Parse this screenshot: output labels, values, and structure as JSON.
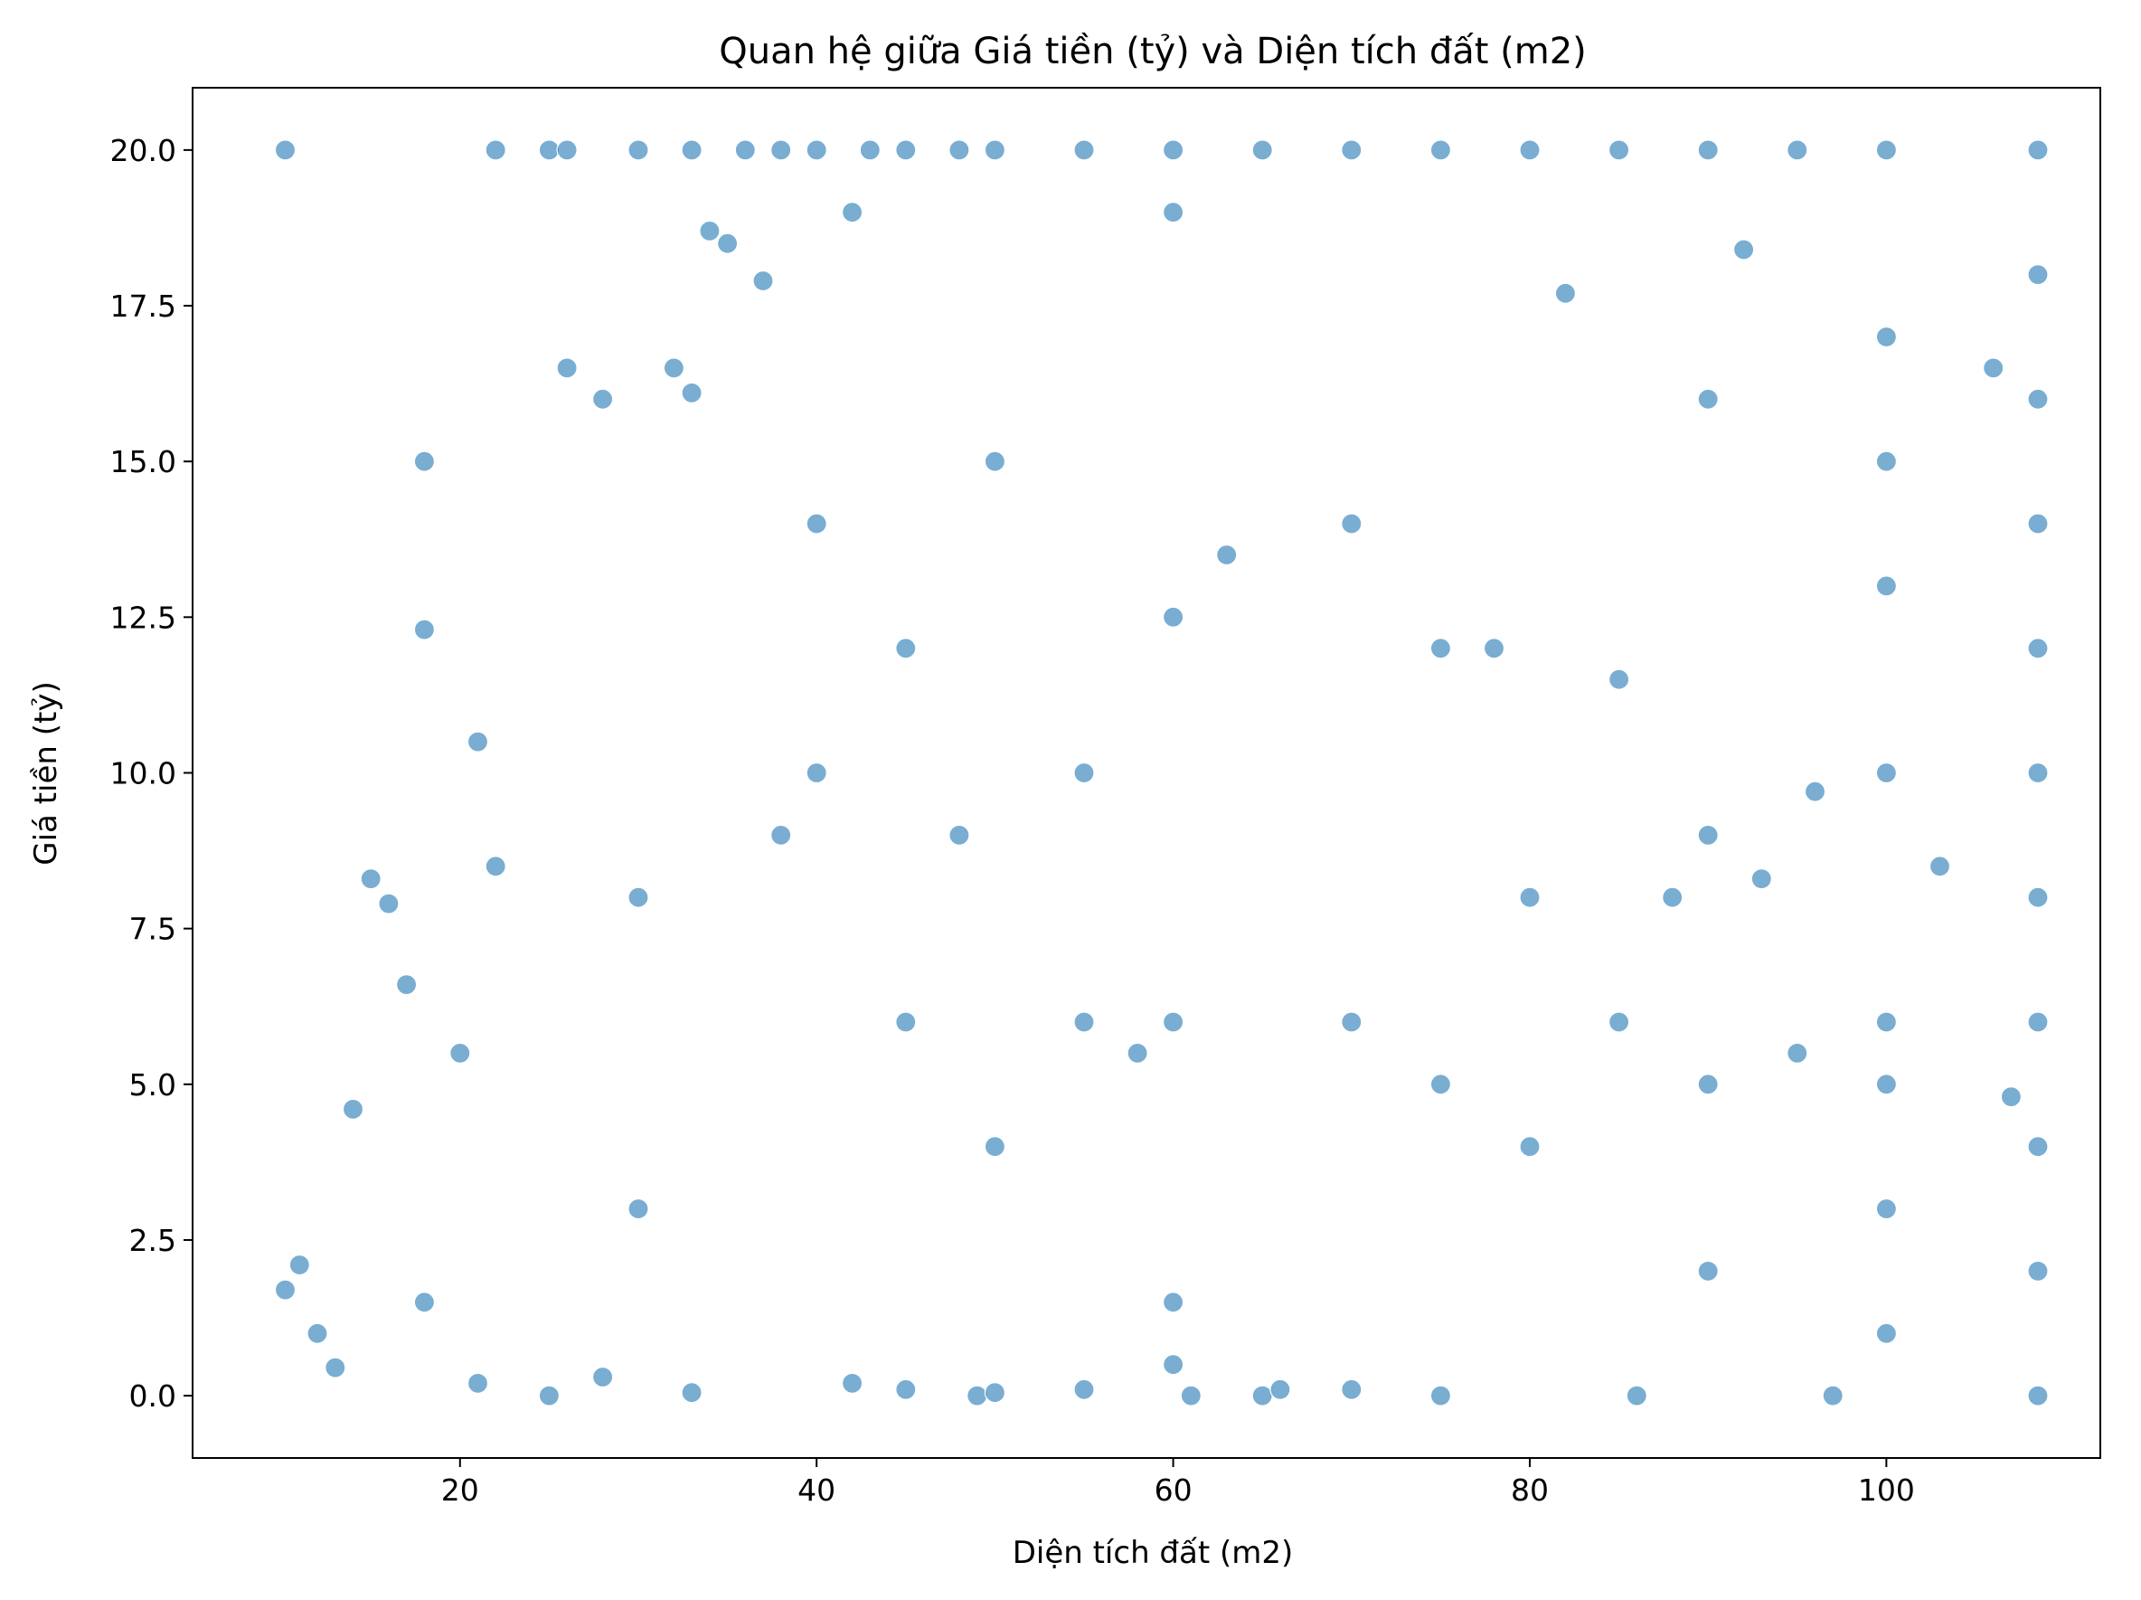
{
  "chart_data": {
    "type": "scatter",
    "title": "Quan hệ giữa Giá tiền (tỷ) và Diện tích đất (m2)",
    "xlabel": "Diện tích đất (m2)",
    "ylabel": "Giá tiền (tỷ)",
    "xlim": [
      5,
      112
    ],
    "ylim": [
      -1,
      21
    ],
    "x_ticks": [
      20,
      40,
      60,
      80,
      100
    ],
    "x_tick_labels": [
      "20",
      "40",
      "60",
      "80",
      "100"
    ],
    "y_ticks": [
      0.0,
      2.5,
      5.0,
      7.5,
      10.0,
      12.5,
      15.0,
      17.5,
      20.0
    ],
    "y_tick_labels": [
      "0.0",
      "2.5",
      "5.0",
      "7.5",
      "10.0",
      "12.5",
      "15.0",
      "17.5",
      "20.0"
    ],
    "grid": false,
    "legend": "none",
    "point_color": "#1f77b4",
    "point_opacity": 0.6,
    "series": [
      {
        "points": [
          [
            10.2,
            20.0
          ],
          [
            22,
            20.0
          ],
          [
            25,
            20.0
          ],
          [
            26,
            20.0
          ],
          [
            30,
            20.0
          ],
          [
            33,
            20.0
          ],
          [
            36,
            20.0
          ],
          [
            38,
            20.0
          ],
          [
            40,
            20.0
          ],
          [
            43,
            20.0
          ],
          [
            45,
            20.0
          ],
          [
            48,
            20.0
          ],
          [
            50,
            20.0
          ],
          [
            55,
            20.0
          ],
          [
            60,
            20.0
          ],
          [
            65,
            20.0
          ],
          [
            70,
            20.0
          ],
          [
            75,
            20.0
          ],
          [
            80,
            20.0
          ],
          [
            85,
            20.0
          ],
          [
            90,
            20.0
          ],
          [
            95,
            20.0
          ],
          [
            100,
            20.0
          ],
          [
            108.5,
            20.0
          ],
          [
            108.5,
            18.0
          ],
          [
            108.5,
            16.0
          ],
          [
            108.5,
            14.0
          ],
          [
            108.5,
            12.0
          ],
          [
            108.5,
            10.0
          ],
          [
            108.5,
            8.0
          ],
          [
            108.5,
            6.0
          ],
          [
            108.5,
            4.0
          ],
          [
            108.5,
            2.0
          ],
          [
            108.5,
            0.0
          ],
          [
            100,
            17.0
          ],
          [
            100,
            13.0
          ],
          [
            100,
            10.0
          ],
          [
            100,
            6.0
          ],
          [
            100,
            5.0
          ],
          [
            100,
            3.0
          ],
          [
            100,
            1.0
          ],
          [
            10.2,
            1.7
          ],
          [
            11,
            2.1
          ],
          [
            12,
            1.0
          ],
          [
            13,
            0.45
          ],
          [
            14,
            4.6
          ],
          [
            15,
            8.3
          ],
          [
            16,
            7.9
          ],
          [
            17,
            6.6
          ],
          [
            18,
            15.0
          ],
          [
            18,
            12.3
          ],
          [
            18,
            1.5
          ],
          [
            20,
            5.5
          ],
          [
            21,
            10.5
          ],
          [
            21,
            0.2
          ],
          [
            22,
            8.5
          ],
          [
            25,
            0.0
          ],
          [
            26,
            16.5
          ],
          [
            28,
            16.0
          ],
          [
            28,
            0.3
          ],
          [
            30,
            8.0
          ],
          [
            30,
            3.0
          ],
          [
            32,
            16.5
          ],
          [
            33,
            16.1
          ],
          [
            33,
            0.05
          ],
          [
            34,
            18.7
          ],
          [
            35,
            18.5
          ],
          [
            37,
            17.9
          ],
          [
            38,
            9.0
          ],
          [
            40,
            10.0
          ],
          [
            40,
            14.0
          ],
          [
            42,
            19.0
          ],
          [
            42,
            0.2
          ],
          [
            45,
            12.0
          ],
          [
            45,
            6.0
          ],
          [
            45,
            0.1
          ],
          [
            48,
            9.0
          ],
          [
            49,
            0.0
          ],
          [
            50,
            15.0
          ],
          [
            50,
            4.0
          ],
          [
            50,
            0.05
          ],
          [
            55,
            10.0
          ],
          [
            55,
            6.0
          ],
          [
            55,
            0.1
          ],
          [
            58,
            5.5
          ],
          [
            60,
            19.0
          ],
          [
            60,
            12.5
          ],
          [
            60,
            6.0
          ],
          [
            60,
            1.5
          ],
          [
            60,
            0.5
          ],
          [
            61,
            0.0
          ],
          [
            63,
            13.5
          ],
          [
            65,
            0.0
          ],
          [
            66,
            0.1
          ],
          [
            70,
            14.0
          ],
          [
            70,
            6.0
          ],
          [
            70,
            0.1
          ],
          [
            75,
            12.0
          ],
          [
            75,
            5.0
          ],
          [
            75,
            0.0
          ],
          [
            78,
            12.0
          ],
          [
            80,
            8.0
          ],
          [
            80,
            4.0
          ],
          [
            82,
            17.7
          ],
          [
            85,
            11.5
          ],
          [
            85,
            6.0
          ],
          [
            86,
            0.0
          ],
          [
            88,
            8.0
          ],
          [
            90,
            16.0
          ],
          [
            90,
            9.0
          ],
          [
            90,
            5.0
          ],
          [
            90,
            2.0
          ],
          [
            92,
            18.4
          ],
          [
            93,
            8.3
          ],
          [
            95,
            5.5
          ],
          [
            96,
            9.7
          ],
          [
            97,
            0.0
          ],
          [
            100,
            15.0
          ],
          [
            103,
            8.5
          ],
          [
            106,
            16.5
          ],
          [
            107,
            4.8
          ]
        ]
      }
    ]
  }
}
